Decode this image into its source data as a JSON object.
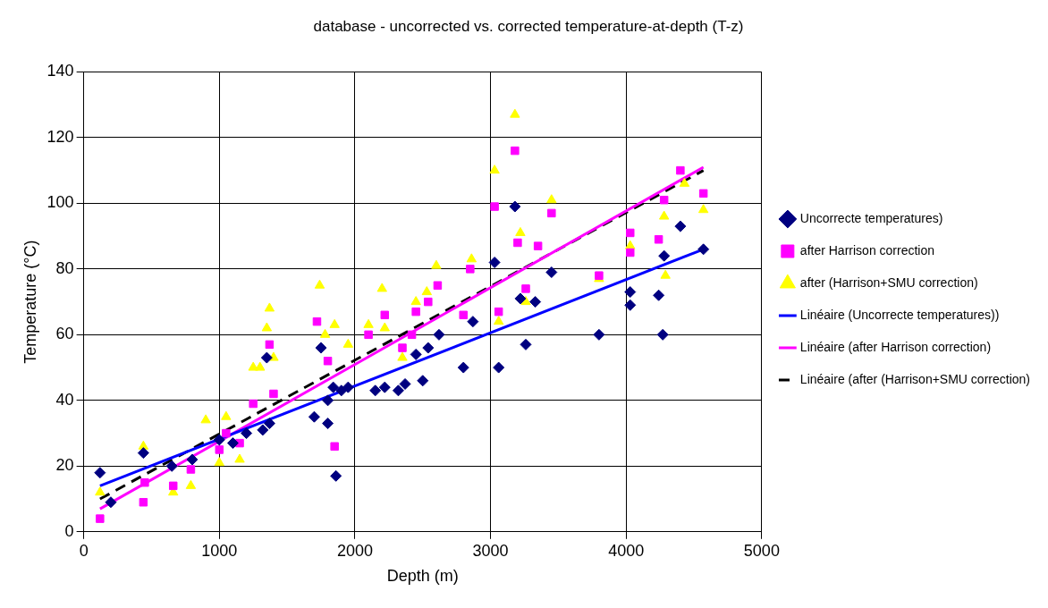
{
  "chart_data": {
    "type": "scatter",
    "title": "database - uncorrected vs. corrected temperature-at-depth (T-z)",
    "xlabel": "Depth (m)",
    "ylabel": "Temperature (°C)",
    "xlim": [
      0,
      5000
    ],
    "xticks": [
      0,
      1000,
      2000,
      3000,
      4000,
      5000
    ],
    "ylim": [
      0,
      140
    ],
    "yticks": [
      0,
      20,
      40,
      60,
      80,
      100,
      120,
      140
    ],
    "grid": true,
    "legend": "right",
    "series": [
      {
        "name": "Uncorrecte temperatures)",
        "type": "scatter",
        "marker": "diamond",
        "color": "#000080",
        "x": [
          120,
          200,
          440,
          650,
          800,
          1000,
          1100,
          1200,
          1320,
          1350,
          1370,
          1700,
          1750,
          1800,
          1800,
          1840,
          1860,
          1900,
          1950,
          2150,
          2220,
          2320,
          2370,
          2450,
          2500,
          2540,
          2620,
          2800,
          2870,
          3030,
          3060,
          3180,
          3220,
          3260,
          3330,
          3450,
          3800,
          4030,
          4030,
          4240,
          4270,
          4280,
          4400,
          4570
        ],
        "values": [
          18,
          9,
          24,
          20,
          22,
          28,
          27,
          30,
          31,
          53,
          33,
          35,
          56,
          33,
          40,
          44,
          17,
          43,
          44,
          43,
          44,
          43,
          45,
          54,
          46,
          56,
          60,
          50,
          64,
          82,
          50,
          99,
          71,
          57,
          70,
          79,
          60,
          73,
          69,
          72,
          60,
          84,
          93,
          86
        ]
      },
      {
        "name": "after Harrison correction",
        "type": "scatter",
        "marker": "square",
        "color": "#ff00ff",
        "x": [
          120,
          440,
          450,
          660,
          790,
          1000,
          1050,
          1150,
          1250,
          1370,
          1400,
          1720,
          1800,
          1850,
          2100,
          2220,
          2350,
          2420,
          2450,
          2540,
          2610,
          2800,
          2850,
          3030,
          3060,
          3180,
          3200,
          3260,
          3350,
          3450,
          3800,
          4030,
          4030,
          4240,
          4280,
          4400,
          4570
        ],
        "values": [
          4,
          9,
          15,
          14,
          19,
          25,
          30,
          27,
          39,
          57,
          42,
          64,
          52,
          26,
          60,
          66,
          56,
          60,
          67,
          70,
          75,
          66,
          80,
          99,
          67,
          116,
          88,
          74,
          87,
          97,
          78,
          91,
          85,
          89,
          101,
          110,
          103
        ]
      },
      {
        "name": "after (Harrison+SMU correction)",
        "type": "scatter",
        "marker": "triangle",
        "color": "#ffff00",
        "x": [
          120,
          440,
          660,
          790,
          900,
          1000,
          1050,
          1150,
          1250,
          1300,
          1350,
          1370,
          1400,
          1740,
          1780,
          1850,
          1950,
          2100,
          2200,
          2220,
          2350,
          2450,
          2530,
          2600,
          2860,
          3030,
          3060,
          3180,
          3220,
          3260,
          3450,
          3800,
          4030,
          4280,
          4290,
          4430,
          4570
        ],
        "values": [
          12,
          26,
          12,
          14,
          34,
          21,
          35,
          22,
          50,
          50,
          62,
          68,
          53,
          75,
          60,
          63,
          57,
          63,
          74,
          62,
          53,
          70,
          73,
          81,
          83,
          110,
          64,
          127,
          91,
          70,
          101,
          77,
          87,
          96,
          78,
          106,
          98
        ]
      },
      {
        "name": "Linéaire (Uncorrecte temperatures))",
        "type": "line",
        "marker": "none",
        "line_style": "solid",
        "color": "#0000ff",
        "x": [
          120,
          4570
        ],
        "values": [
          14,
          86
        ]
      },
      {
        "name": "Linéaire (after Harrison correction)",
        "type": "line",
        "marker": "none",
        "line_style": "solid",
        "color": "#ff00ff",
        "x": [
          120,
          4570
        ],
        "values": [
          7,
          111
        ]
      },
      {
        "name": "Linéaire (after (Harrison+SMU correction)",
        "type": "line",
        "marker": "none",
        "line_style": "dashed",
        "color": "#000000",
        "x": [
          120,
          4570
        ],
        "values": [
          10,
          110
        ]
      }
    ]
  }
}
